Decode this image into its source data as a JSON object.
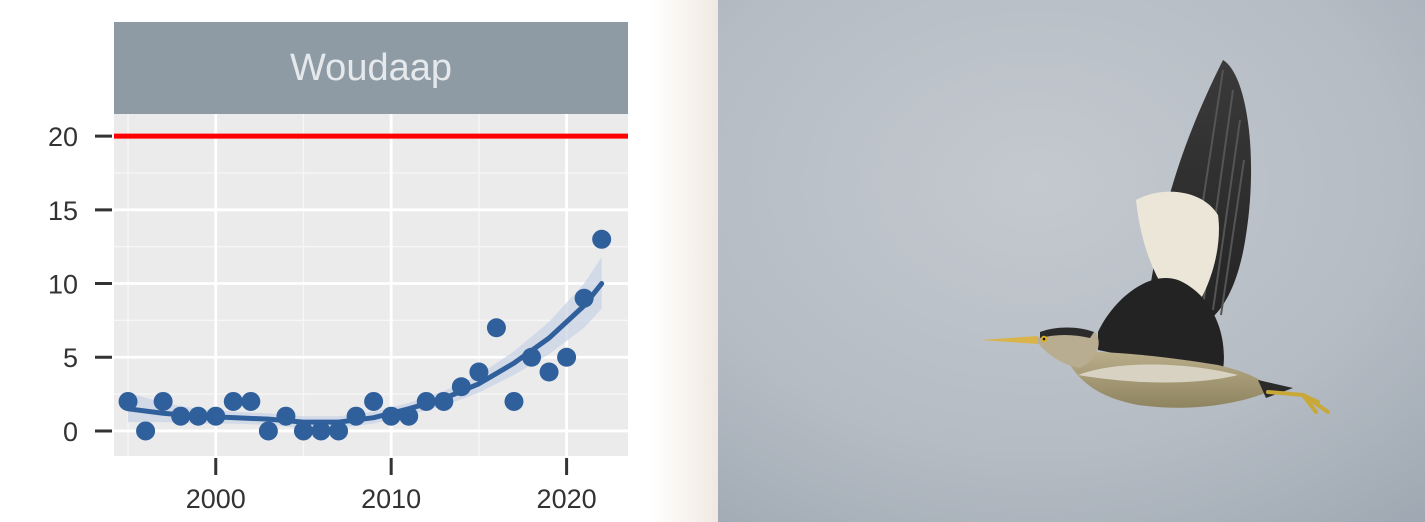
{
  "chart_data": {
    "type": "scatter",
    "title": "Woudaap",
    "xlabel": "",
    "ylabel": "",
    "xlim": [
      1994.2,
      2023.5
    ],
    "ylim": [
      -1.7,
      21.5
    ],
    "x_ticks": [
      2000,
      2010,
      2020
    ],
    "y_ticks": [
      0,
      5,
      10,
      15,
      20
    ],
    "grid": true,
    "legend": "none",
    "reference_line": {
      "y": 20,
      "color": "#ff0000"
    },
    "points": {
      "x": [
        1995,
        1996,
        1997,
        1998,
        1999,
        2000,
        2001,
        2002,
        2003,
        2004,
        2005,
        2006,
        2007,
        2008,
        2009,
        2010,
        2011,
        2012,
        2013,
        2014,
        2015,
        2016,
        2017,
        2018,
        2019,
        2020,
        2021,
        2022
      ],
      "y": [
        2,
        0,
        2,
        1,
        1,
        1,
        2,
        2,
        0,
        1,
        0,
        0,
        0,
        1,
        2,
        1,
        1,
        2,
        2,
        3,
        4,
        7,
        2,
        5,
        4,
        5,
        9,
        13
      ]
    },
    "trend": {
      "x": [
        1995,
        1997,
        1999,
        2001,
        2003,
        2005,
        2007,
        2009,
        2011,
        2013,
        2015,
        2017,
        2019,
        2021,
        2022
      ],
      "y": [
        1.5,
        1.2,
        1.0,
        0.9,
        0.8,
        0.6,
        0.6,
        0.9,
        1.5,
        2.2,
        3.2,
        4.6,
        6.3,
        8.5,
        10
      ],
      "band_low": [
        0.6,
        0.6,
        0.5,
        0.5,
        0.4,
        0.2,
        0.2,
        0.5,
        1.1,
        1.7,
        2.6,
        3.8,
        5.2,
        7.0,
        8.3
      ],
      "band_high": [
        2.6,
        1.9,
        1.5,
        1.3,
        1.2,
        1.0,
        1.0,
        1.3,
        1.9,
        2.7,
        3.8,
        5.4,
        7.4,
        10.0,
        11.8
      ]
    },
    "colors": {
      "panel_background": "#ebebeb",
      "strip": "#8e9ba5",
      "strip_text": "#e6e9ec",
      "points": "#30609c",
      "trend": "#30609c",
      "band": "#c9d3e5"
    }
  }
}
